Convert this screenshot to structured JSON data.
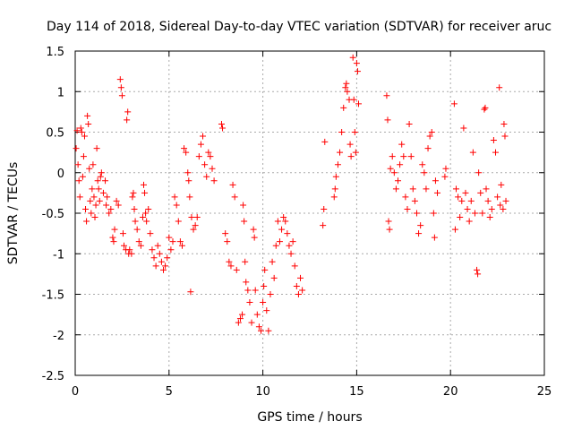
{
  "chart_data": {
    "type": "scatter",
    "title": "Day 114 of 2018, Sidereal Day-to-day VTEC variation (SDTVAR) for receiver aruc",
    "xlabel": "GPS time / hours",
    "ylabel": "SDTVAR / TECUs",
    "xlim": [
      0,
      25
    ],
    "ylim": [
      -2.5,
      1.5
    ],
    "xticks": [
      0,
      5,
      10,
      15,
      20,
      25
    ],
    "xtick_labels": [
      "0",
      "5",
      "10",
      "15",
      "20",
      "25"
    ],
    "yticks": [
      1.5,
      1,
      0.5,
      0,
      -0.5,
      -1,
      -1.5,
      -2,
      -2.5
    ],
    "ytick_labels": [
      "1.5",
      "1",
      "0.5",
      "0",
      "-0.5",
      "-1",
      "-1.5",
      "-2",
      "-2.5"
    ],
    "grid": true,
    "marker": "+",
    "marker_color": "#ff0000",
    "series": [
      {
        "name": "SDTVAR",
        "points": [
          [
            0.05,
            0.3
          ],
          [
            0.1,
            0.52
          ],
          [
            0.15,
            0.1
          ],
          [
            0.2,
            -0.1
          ],
          [
            0.25,
            -0.3
          ],
          [
            0.3,
            0.55
          ],
          [
            0.35,
            0.5
          ],
          [
            0.4,
            -0.05
          ],
          [
            0.45,
            0.2
          ],
          [
            0.5,
            0.45
          ],
          [
            0.55,
            -0.45
          ],
          [
            0.6,
            -0.6
          ],
          [
            0.65,
            0.7
          ],
          [
            0.7,
            0.6
          ],
          [
            0.75,
            0.05
          ],
          [
            0.8,
            -0.35
          ],
          [
            0.85,
            -0.5
          ],
          [
            0.9,
            -0.2
          ],
          [
            0.95,
            0.1
          ],
          [
            1.0,
            -0.3
          ],
          [
            1.05,
            -0.55
          ],
          [
            1.1,
            -0.4
          ],
          [
            1.15,
            0.3
          ],
          [
            1.2,
            -0.1
          ],
          [
            1.25,
            -0.2
          ],
          [
            1.3,
            -0.35
          ],
          [
            1.35,
            -0.05
          ],
          [
            1.4,
            0.0
          ],
          [
            1.5,
            -0.25
          ],
          [
            1.6,
            -0.1
          ],
          [
            1.65,
            -0.4
          ],
          [
            1.7,
            -0.3
          ],
          [
            1.8,
            -0.5
          ],
          [
            1.9,
            -0.45
          ],
          [
            2.0,
            -0.8
          ],
          [
            2.05,
            -0.85
          ],
          [
            2.1,
            -0.7
          ],
          [
            2.2,
            -0.35
          ],
          [
            2.3,
            -0.4
          ],
          [
            2.4,
            1.15
          ],
          [
            2.45,
            1.05
          ],
          [
            2.5,
            0.95
          ],
          [
            2.55,
            -0.75
          ],
          [
            2.6,
            -0.9
          ],
          [
            2.7,
            -0.95
          ],
          [
            2.75,
            0.65
          ],
          [
            2.8,
            0.75
          ],
          [
            2.85,
            -1.0
          ],
          [
            2.9,
            -0.95
          ],
          [
            3.0,
            -1.0
          ],
          [
            3.05,
            -0.3
          ],
          [
            3.1,
            -0.25
          ],
          [
            3.15,
            -0.45
          ],
          [
            3.2,
            -0.6
          ],
          [
            3.3,
            -0.7
          ],
          [
            3.4,
            -0.85
          ],
          [
            3.5,
            -0.9
          ],
          [
            3.6,
            -0.55
          ],
          [
            3.65,
            -0.15
          ],
          [
            3.7,
            -0.25
          ],
          [
            3.75,
            -0.5
          ],
          [
            3.8,
            -0.6
          ],
          [
            3.9,
            -0.45
          ],
          [
            4.0,
            -0.75
          ],
          [
            4.1,
            -0.95
          ],
          [
            4.2,
            -1.05
          ],
          [
            4.3,
            -1.15
          ],
          [
            4.4,
            -0.9
          ],
          [
            4.5,
            -1.0
          ],
          [
            4.6,
            -1.1
          ],
          [
            4.7,
            -1.2
          ],
          [
            4.8,
            -1.15
          ],
          [
            4.9,
            -1.05
          ],
          [
            5.0,
            -0.8
          ],
          [
            5.1,
            -0.95
          ],
          [
            5.2,
            -0.85
          ],
          [
            5.3,
            -0.3
          ],
          [
            5.4,
            -0.4
          ],
          [
            5.5,
            -0.6
          ],
          [
            5.6,
            -0.85
          ],
          [
            5.7,
            -0.9
          ],
          [
            5.8,
            0.3
          ],
          [
            5.9,
            0.25
          ],
          [
            6.0,
            0.0
          ],
          [
            6.05,
            -0.1
          ],
          [
            6.1,
            -0.3
          ],
          [
            6.15,
            -1.47
          ],
          [
            6.2,
            -0.55
          ],
          [
            6.3,
            -0.7
          ],
          [
            6.4,
            -0.65
          ],
          [
            6.5,
            -0.55
          ],
          [
            6.6,
            0.2
          ],
          [
            6.7,
            0.35
          ],
          [
            6.8,
            0.45
          ],
          [
            6.9,
            0.1
          ],
          [
            7.0,
            -0.05
          ],
          [
            7.1,
            0.25
          ],
          [
            7.2,
            0.2
          ],
          [
            7.3,
            0.05
          ],
          [
            7.4,
            -0.1
          ],
          [
            7.8,
            0.6
          ],
          [
            7.85,
            0.55
          ],
          [
            8.0,
            -0.75
          ],
          [
            8.1,
            -0.85
          ],
          [
            8.2,
            -1.1
          ],
          [
            8.3,
            -1.15
          ],
          [
            8.4,
            -0.15
          ],
          [
            8.5,
            -0.3
          ],
          [
            8.6,
            -1.2
          ],
          [
            8.7,
            -1.85
          ],
          [
            8.8,
            -1.8
          ],
          [
            8.9,
            -1.75
          ],
          [
            8.95,
            -0.4
          ],
          [
            9.0,
            -0.6
          ],
          [
            9.05,
            -1.1
          ],
          [
            9.1,
            -1.35
          ],
          [
            9.2,
            -1.45
          ],
          [
            9.3,
            -1.6
          ],
          [
            9.4,
            -1.85
          ],
          [
            9.5,
            -0.7
          ],
          [
            9.55,
            -0.8
          ],
          [
            9.6,
            -1.45
          ],
          [
            9.7,
            -1.75
          ],
          [
            9.8,
            -1.9
          ],
          [
            9.9,
            -1.95
          ],
          [
            10.0,
            -1.6
          ],
          [
            10.05,
            -1.4
          ],
          [
            10.1,
            -1.2
          ],
          [
            10.2,
            -1.7
          ],
          [
            10.3,
            -1.95
          ],
          [
            10.4,
            -1.5
          ],
          [
            10.5,
            -1.1
          ],
          [
            10.6,
            -1.3
          ],
          [
            10.7,
            -0.9
          ],
          [
            10.8,
            -0.6
          ],
          [
            10.9,
            -0.85
          ],
          [
            11.0,
            -0.7
          ],
          [
            11.1,
            -0.55
          ],
          [
            11.2,
            -0.6
          ],
          [
            11.3,
            -0.75
          ],
          [
            11.4,
            -0.9
          ],
          [
            11.5,
            -1.0
          ],
          [
            11.6,
            -0.85
          ],
          [
            11.7,
            -1.15
          ],
          [
            11.8,
            -1.4
          ],
          [
            11.9,
            -1.5
          ],
          [
            12.0,
            -1.3
          ],
          [
            12.1,
            -1.45
          ],
          [
            13.2,
            -0.65
          ],
          [
            13.25,
            -0.45
          ],
          [
            13.3,
            0.38
          ],
          [
            13.8,
            -0.3
          ],
          [
            13.85,
            -0.2
          ],
          [
            13.9,
            -0.05
          ],
          [
            14.0,
            0.1
          ],
          [
            14.1,
            0.25
          ],
          [
            14.2,
            0.5
          ],
          [
            14.3,
            0.8
          ],
          [
            14.4,
            1.05
          ],
          [
            14.45,
            1.1
          ],
          [
            14.5,
            1.0
          ],
          [
            14.6,
            0.9
          ],
          [
            14.65,
            0.35
          ],
          [
            14.7,
            0.2
          ],
          [
            14.8,
            1.42
          ],
          [
            14.85,
            0.9
          ],
          [
            14.9,
            0.5
          ],
          [
            14.95,
            0.25
          ],
          [
            15.0,
            1.35
          ],
          [
            15.05,
            1.25
          ],
          [
            15.1,
            0.85
          ],
          [
            16.6,
            0.95
          ],
          [
            16.65,
            0.65
          ],
          [
            16.7,
            -0.6
          ],
          [
            16.75,
            -0.7
          ],
          [
            16.8,
            0.05
          ],
          [
            16.9,
            0.2
          ],
          [
            17.0,
            0.0
          ],
          [
            17.1,
            -0.2
          ],
          [
            17.2,
            -0.1
          ],
          [
            17.3,
            0.1
          ],
          [
            17.4,
            0.35
          ],
          [
            17.5,
            0.2
          ],
          [
            17.6,
            -0.3
          ],
          [
            17.7,
            -0.45
          ],
          [
            17.8,
            0.6
          ],
          [
            17.9,
            0.2
          ],
          [
            18.0,
            -0.2
          ],
          [
            18.1,
            -0.35
          ],
          [
            18.2,
            -0.5
          ],
          [
            18.3,
            -0.75
          ],
          [
            18.4,
            -0.65
          ],
          [
            18.5,
            0.1
          ],
          [
            18.6,
            0.0
          ],
          [
            18.7,
            -0.2
          ],
          [
            18.8,
            0.3
          ],
          [
            18.9,
            0.45
          ],
          [
            19.0,
            0.5
          ],
          [
            19.1,
            -0.5
          ],
          [
            19.15,
            -0.8
          ],
          [
            19.2,
            -0.1
          ],
          [
            19.3,
            -0.25
          ],
          [
            19.7,
            -0.05
          ],
          [
            19.75,
            0.05
          ],
          [
            20.2,
            0.85
          ],
          [
            20.25,
            -0.7
          ],
          [
            20.3,
            -0.2
          ],
          [
            20.4,
            -0.3
          ],
          [
            20.5,
            -0.55
          ],
          [
            20.6,
            -0.35
          ],
          [
            20.7,
            0.55
          ],
          [
            20.8,
            -0.25
          ],
          [
            20.9,
            -0.45
          ],
          [
            21.0,
            -0.6
          ],
          [
            21.1,
            -0.35
          ],
          [
            21.2,
            0.25
          ],
          [
            21.3,
            -0.5
          ],
          [
            21.4,
            -1.2
          ],
          [
            21.45,
            -1.25
          ],
          [
            21.5,
            0.0
          ],
          [
            21.6,
            -0.25
          ],
          [
            21.7,
            -0.5
          ],
          [
            21.8,
            0.78
          ],
          [
            21.85,
            0.8
          ],
          [
            21.9,
            -0.2
          ],
          [
            22.0,
            -0.35
          ],
          [
            22.1,
            -0.55
          ],
          [
            22.2,
            -0.45
          ],
          [
            22.3,
            0.4
          ],
          [
            22.4,
            0.25
          ],
          [
            22.5,
            -0.3
          ],
          [
            22.6,
            1.05
          ],
          [
            22.65,
            -0.4
          ],
          [
            22.7,
            -0.15
          ],
          [
            22.8,
            -0.45
          ],
          [
            22.85,
            0.6
          ],
          [
            22.9,
            0.45
          ],
          [
            22.95,
            -0.35
          ]
        ]
      }
    ]
  }
}
